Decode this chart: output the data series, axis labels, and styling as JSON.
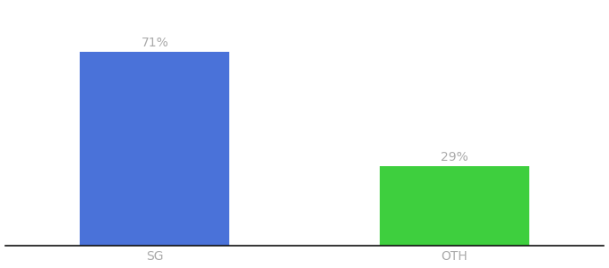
{
  "categories": [
    "SG",
    "OTH"
  ],
  "values": [
    71,
    29
  ],
  "bar_colors": [
    "#4a72d9",
    "#3ecf3e"
  ],
  "label_color": "#aaaaaa",
  "axis_line_color": "#111111",
  "background_color": "#ffffff",
  "label_fontsize": 10,
  "tick_fontsize": 10,
  "bar_width": 0.5,
  "ylim": [
    0,
    88
  ],
  "xlim": [
    -0.5,
    1.5
  ],
  "x_positions": [
    0,
    1
  ],
  "annotations": [
    "71%",
    "29%"
  ]
}
